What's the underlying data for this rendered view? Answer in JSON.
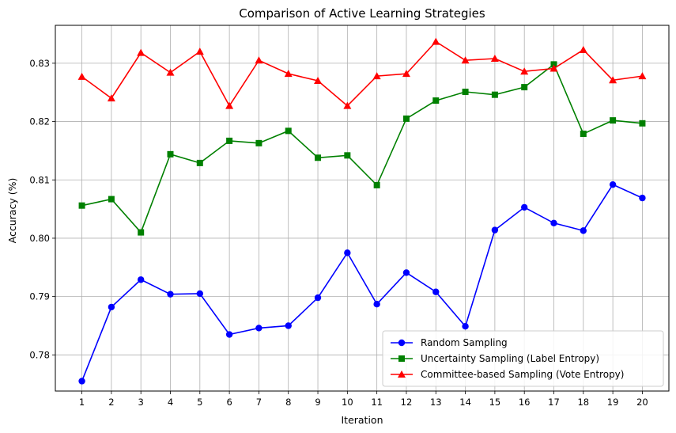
{
  "chart_data": {
    "type": "line",
    "title": "Comparison of Active Learning Strategies",
    "xlabel": "Iteration",
    "ylabel": "Accuracy (%)",
    "x": [
      1,
      2,
      3,
      4,
      5,
      6,
      7,
      8,
      9,
      10,
      11,
      12,
      13,
      14,
      15,
      16,
      17,
      18,
      19,
      20
    ],
    "xlim": [
      0.1,
      20.9
    ],
    "ylim": [
      0.7738,
      0.8365
    ],
    "yticks": [
      0.78,
      0.79,
      0.8,
      0.81,
      0.82,
      0.83
    ],
    "ytick_labels": [
      "0.78",
      "0.79",
      "0.80",
      "0.81",
      "0.82",
      "0.83"
    ],
    "grid": true,
    "legend_position": "lower-right",
    "series": [
      {
        "name": "Random Sampling",
        "color": "#0000ff",
        "marker": "circle",
        "values": [
          0.7755,
          0.7882,
          0.7929,
          0.7904,
          0.7905,
          0.7835,
          0.7846,
          0.785,
          0.7898,
          0.7975,
          0.7887,
          0.7941,
          0.7908,
          0.7849,
          0.8014,
          0.8053,
          0.8026,
          0.8013,
          0.8092,
          0.8069
        ]
      },
      {
        "name": "Uncertainty Sampling (Label Entropy)",
        "color": "#008000",
        "marker": "square",
        "values": [
          0.8056,
          0.8067,
          0.801,
          0.8144,
          0.8129,
          0.8167,
          0.8163,
          0.8184,
          0.8138,
          0.8142,
          0.8091,
          0.8205,
          0.8236,
          0.8251,
          0.8246,
          0.8259,
          0.8298,
          0.8179,
          0.8202,
          0.8197
        ]
      },
      {
        "name": "Committee-based Sampling (Vote Entropy)",
        "color": "#ff0000",
        "marker": "triangle",
        "values": [
          0.8277,
          0.824,
          0.8318,
          0.8284,
          0.832,
          0.8227,
          0.8305,
          0.8282,
          0.827,
          0.8227,
          0.8278,
          0.8282,
          0.8337,
          0.8305,
          0.8308,
          0.8286,
          0.8291,
          0.8323,
          0.8271,
          0.8278
        ]
      }
    ]
  }
}
